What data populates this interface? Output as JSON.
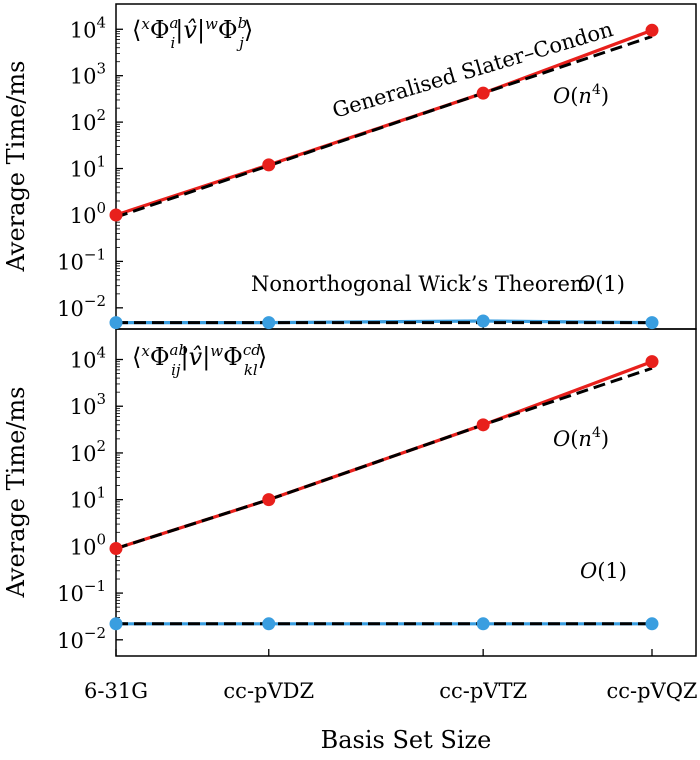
{
  "chart_data": [
    {
      "type": "line",
      "title_parts": {
        "pre": "⟨",
        "sup1": "x",
        "Phi1": "Φ",
        "a": "a",
        "i": "i",
        "mid": "|",
        "v": "v̂",
        "bar": "|",
        "sup2": "w",
        "Phi2": "Φ",
        "b": "b",
        "j": "j",
        "post": "⟩"
      },
      "ylabel": "Average Time/ms",
      "yscale": "log",
      "ylim": [
        0.0035,
        35000
      ],
      "yticks": [
        {
          "base": "10",
          "exp": "4",
          "value": 10000
        },
        {
          "base": "10",
          "exp": "3",
          "value": 1000
        },
        {
          "base": "10",
          "exp": "2",
          "value": 100
        },
        {
          "base": "10",
          "exp": "1",
          "value": 10
        },
        {
          "base": "10",
          "exp": "0",
          "value": 1
        },
        {
          "base": "10",
          "exp": "−1",
          "value": 0.1
        },
        {
          "base": "10",
          "exp": "−2",
          "value": 0.01
        }
      ],
      "series": [
        {
          "name": "Generalised Slater–Condon",
          "color": "#e8201c",
          "marker": "circle",
          "values": [
            1.0,
            12.0,
            420.0,
            9500.0
          ]
        },
        {
          "name": "Nonorthogonal Wick’s Theorem",
          "color": "#3a9ee0",
          "marker": "circle",
          "values": [
            0.0048,
            0.0048,
            0.0052,
            0.0048
          ]
        }
      ],
      "fits": [
        {
          "label": "O(n^4)",
          "color": "#000000",
          "style": "dashed",
          "values": [
            0.9,
            11.5,
            420.0,
            7000.0
          ]
        },
        {
          "label": "O(1)",
          "color": "#000000",
          "style": "dashed",
          "values": [
            0.0048,
            0.0048,
            0.0048,
            0.0048
          ]
        }
      ],
      "annotations": {
        "slater_label": "Generalised Slater–Condon",
        "wick_label": "Nonorthogonal Wick’s Theorem",
        "on4": {
          "O": "O",
          "open": "(",
          "n": "n",
          "exp": "4",
          "close": ")"
        },
        "o1": {
          "O": "O",
          "rest": "(1)"
        }
      }
    },
    {
      "type": "line",
      "title_parts": {
        "pre": "⟨",
        "sup1": "x",
        "Phi1": "Φ",
        "ab": "ab",
        "ij": "ij",
        "mid": "|",
        "v": "v̂",
        "bar": "|",
        "sup2": "w",
        "Phi2": "Φ",
        "cd": "cd",
        "kl": "kl",
        "post": "⟩"
      },
      "ylabel": "Average Time/ms",
      "yscale": "log",
      "ylim": [
        0.0045,
        45000
      ],
      "yticks": [
        {
          "base": "10",
          "exp": "4",
          "value": 10000
        },
        {
          "base": "10",
          "exp": "3",
          "value": 1000
        },
        {
          "base": "10",
          "exp": "2",
          "value": 100
        },
        {
          "base": "10",
          "exp": "1",
          "value": 10
        },
        {
          "base": "10",
          "exp": "0",
          "value": 1
        },
        {
          "base": "10",
          "exp": "−1",
          "value": 0.1
        },
        {
          "base": "10",
          "exp": "−2",
          "value": 0.01
        }
      ],
      "series": [
        {
          "name": "Generalised Slater–Condon",
          "color": "#e8201c",
          "marker": "circle",
          "values": [
            0.9,
            10.0,
            400.0,
            9000.0
          ]
        },
        {
          "name": "Nonorthogonal Wick’s Theorem",
          "color": "#3a9ee0",
          "marker": "circle",
          "values": [
            0.022,
            0.022,
            0.022,
            0.022
          ]
        }
      ],
      "fits": [
        {
          "label": "O(n^4)",
          "color": "#000000",
          "style": "dashed",
          "values": [
            0.9,
            10.0,
            400.0,
            6500.0
          ]
        },
        {
          "label": "O(1)",
          "color": "#000000",
          "style": "dashed",
          "values": [
            0.022,
            0.022,
            0.022,
            0.022
          ]
        }
      ],
      "annotations": {
        "on4": {
          "O": "O",
          "open": "(",
          "n": "n",
          "exp": "4",
          "close": ")"
        },
        "o1": {
          "O": "O",
          "rest": "(1)"
        }
      }
    }
  ],
  "xaxis": {
    "categories": [
      "6-31G",
      "cc-pVDZ",
      "cc-pVTZ",
      "cc-pVQZ"
    ],
    "positions": [
      0,
      0.285,
      0.685,
      1.0
    ],
    "label": "Basis Set Size"
  }
}
